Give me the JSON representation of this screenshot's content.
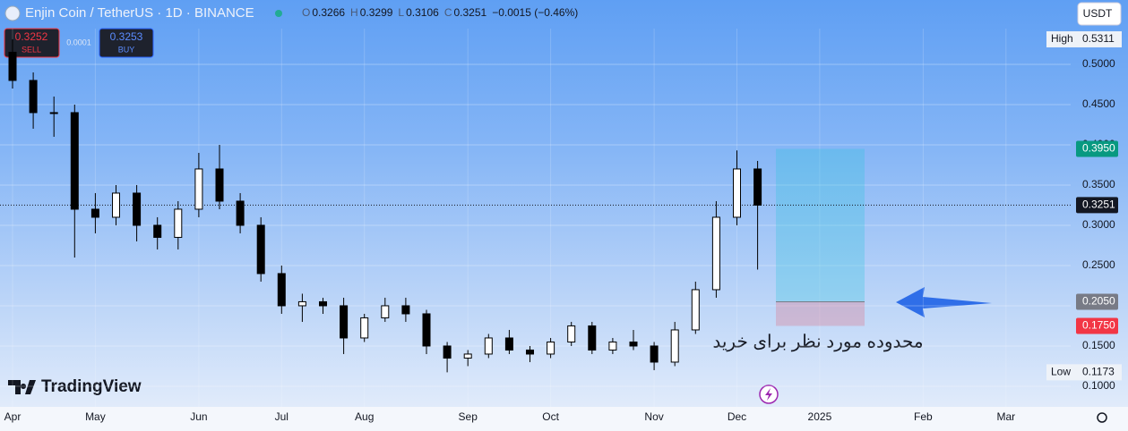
{
  "header": {
    "symbol": "Enjin Coin / TetherUS · 1D · BINANCE",
    "ohlc": [
      {
        "key": "O",
        "value": "0.3266"
      },
      {
        "key": "H",
        "value": "0.3299"
      },
      {
        "key": "L",
        "value": "0.3106"
      },
      {
        "key": "C",
        "value": "0.3251"
      }
    ],
    "change": "−0.0015 (−0.46%)",
    "currency": "USDT"
  },
  "trade": {
    "sell_price": "0.3252",
    "sell": "SELL",
    "spread": "0.0001",
    "buy_price": "0.3253",
    "buy": "BUY"
  },
  "annotation": "محدوده مورد نظر برای خرید",
  "logo": "TradingView",
  "chart_data": {
    "type": "candlestick",
    "categories": [
      "Apr",
      null,
      null,
      null,
      "May",
      null,
      null,
      null,
      null,
      "Jun",
      null,
      null,
      null,
      "Jul",
      null,
      null,
      null,
      "Aug",
      null,
      null,
      null,
      null,
      "Sep",
      null,
      null,
      null,
      "Oct",
      null,
      null,
      null,
      null,
      "Nov",
      null,
      null,
      null,
      "Dec",
      null,
      null,
      null,
      "2025",
      null,
      null,
      null,
      null,
      "Feb",
      null,
      null,
      null,
      "Mar",
      null,
      null
    ],
    "open": [
      0.515,
      0.48,
      0.44,
      0.44,
      0.32,
      0.31,
      0.34,
      0.3,
      0.285,
      0.32,
      0.37,
      0.33,
      0.3,
      0.24,
      0.2,
      0.205,
      0.2,
      0.16,
      0.185,
      0.2,
      0.19,
      0.15,
      0.135,
      0.14,
      0.16,
      0.145,
      0.14,
      0.155,
      0.175,
      0.145,
      0.155,
      0.15,
      0.13,
      0.17,
      0.22,
      0.31,
      0.37,
      null,
      null,
      null,
      null,
      null,
      null,
      null,
      null,
      null,
      null,
      null,
      null,
      null,
      null
    ],
    "high": [
      0.5311,
      0.49,
      0.46,
      0.45,
      0.34,
      0.35,
      0.35,
      0.31,
      0.33,
      0.39,
      0.4,
      0.34,
      0.31,
      0.25,
      0.215,
      0.21,
      0.21,
      0.19,
      0.21,
      0.21,
      0.195,
      0.155,
      0.145,
      0.165,
      0.17,
      0.15,
      0.16,
      0.18,
      0.18,
      0.16,
      0.17,
      0.155,
      0.18,
      0.23,
      0.33,
      0.393,
      0.38,
      null,
      null,
      null,
      null,
      null,
      null,
      null,
      null,
      null,
      null,
      null,
      null,
      null,
      null
    ],
    "low": [
      0.47,
      0.42,
      0.41,
      0.26,
      0.29,
      0.3,
      0.28,
      0.27,
      0.27,
      0.31,
      0.32,
      0.29,
      0.23,
      0.19,
      0.18,
      0.19,
      0.14,
      0.155,
      0.18,
      0.18,
      0.14,
      0.1173,
      0.125,
      0.135,
      0.14,
      0.13,
      0.135,
      0.15,
      0.14,
      0.14,
      0.145,
      0.12,
      0.125,
      0.165,
      0.21,
      0.3,
      0.245,
      null,
      null,
      null,
      null,
      null,
      null,
      null,
      null,
      null,
      null,
      null,
      null,
      null,
      null
    ],
    "close": [
      0.48,
      0.44,
      0.44,
      0.32,
      0.31,
      0.34,
      0.3,
      0.285,
      0.32,
      0.37,
      0.33,
      0.3,
      0.24,
      0.2,
      0.205,
      0.2,
      0.16,
      0.185,
      0.2,
      0.19,
      0.15,
      0.135,
      0.14,
      0.16,
      0.145,
      0.14,
      0.155,
      0.175,
      0.145,
      0.155,
      0.15,
      0.13,
      0.17,
      0.22,
      0.31,
      0.37,
      0.3251,
      null,
      null,
      null,
      null,
      null,
      null,
      null,
      null,
      null,
      null,
      null,
      null,
      null,
      null
    ],
    "up_color": "#ffffff",
    "down_color": "#000000",
    "wick_color": "#000000",
    "ylim": [
      0.0744,
      0.5444
    ],
    "yticks": [
      {
        "value": 0.1,
        "label": "0.1000"
      },
      {
        "value": 0.15,
        "label": "0.1500"
      },
      {
        "value": 0.2,
        "label": "0.2000"
      },
      {
        "value": 0.25,
        "label": "0.2500"
      },
      {
        "value": 0.3,
        "label": "0.3000"
      },
      {
        "value": 0.35,
        "label": "0.3500"
      },
      {
        "value": 0.4,
        "label": "0.4000"
      },
      {
        "value": 0.45,
        "label": "0.4500"
      },
      {
        "value": 0.5,
        "label": "0.5000"
      }
    ],
    "grid": true,
    "markers": [
      {
        "name": "High",
        "value": 0.5311,
        "label": "0.5311"
      },
      {
        "name": "Low",
        "value": 0.1173,
        "label": "0.1173"
      }
    ],
    "price_labels": [
      {
        "value": 0.395,
        "label": "0.3950",
        "color": "#089981"
      },
      {
        "value": 0.3251,
        "label": "0.3251",
        "color": "#131722"
      },
      {
        "value": 0.205,
        "label": "0.2050",
        "color": "#787b86"
      },
      {
        "value": 0.175,
        "label": "0.1750",
        "color": "#f23645"
      }
    ]
  }
}
